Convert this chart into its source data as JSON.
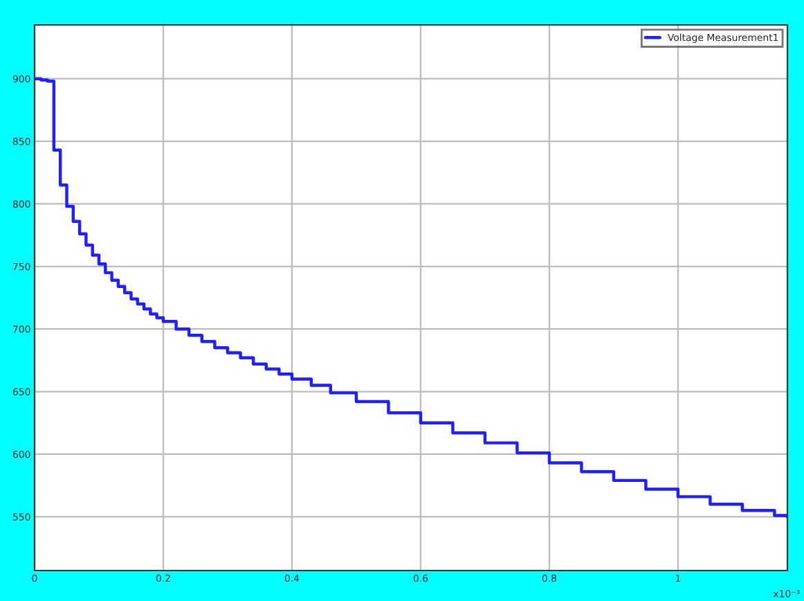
{
  "chart_data": {
    "type": "step",
    "x": [
      0,
      0.01,
      0.02,
      0.03,
      0.04,
      0.05,
      0.06,
      0.07,
      0.08,
      0.09,
      0.1,
      0.11,
      0.12,
      0.13,
      0.14,
      0.15,
      0.16,
      0.17,
      0.18,
      0.19,
      0.2,
      0.22,
      0.24,
      0.26,
      0.28,
      0.3,
      0.32,
      0.34,
      0.36,
      0.38,
      0.4,
      0.43,
      0.46,
      0.5,
      0.55,
      0.6,
      0.65,
      0.7,
      0.75,
      0.8,
      0.85,
      0.9,
      0.95,
      1.0,
      1.05,
      1.1,
      1.15,
      1.17
    ],
    "series": [
      {
        "name": "Voltage Measurement1",
        "color": "#1f1fff",
        "values": [
          900,
          899,
          898,
          843,
          815,
          798,
          786,
          776,
          767,
          759,
          752,
          745,
          739,
          734,
          729,
          724,
          720,
          716,
          712,
          709,
          706,
          700,
          695,
          690,
          685,
          681,
          677,
          672,
          668,
          664,
          660,
          655,
          649,
          642,
          633,
          625,
          617,
          609,
          601,
          593,
          586,
          579,
          572,
          566,
          560,
          555,
          551,
          550
        ]
      }
    ],
    "xlim": [
      0,
      1.17
    ],
    "ylim": [
      507,
      943
    ],
    "xticks": [
      0,
      0.2,
      0.4,
      0.6,
      0.8,
      1
    ],
    "yticks": [
      550,
      600,
      650,
      700,
      750,
      800,
      850,
      900
    ],
    "annotations": [
      "x10⁻³"
    ],
    "grid": true,
    "legend": "top right",
    "line_style": "solid",
    "marker": "none"
  }
}
